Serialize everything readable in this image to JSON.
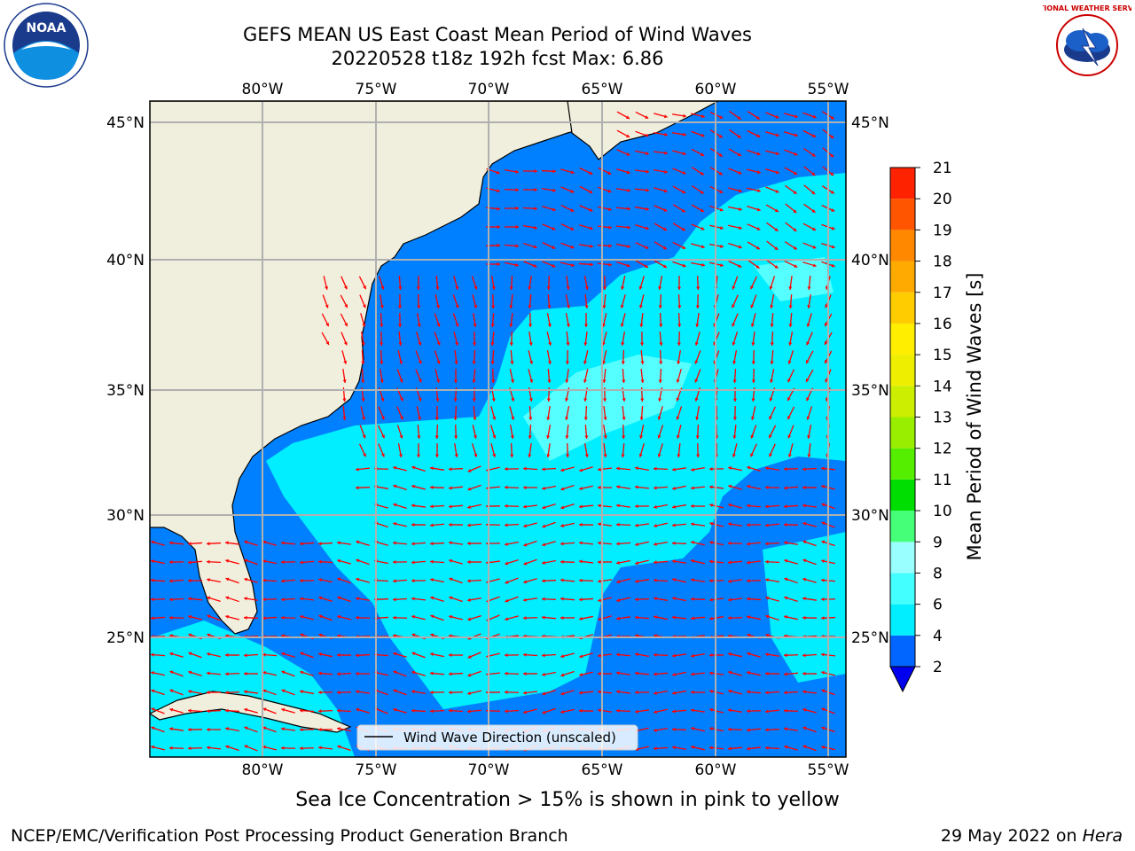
{
  "title": {
    "line1": "GEFS MEAN US East Coast Mean Period of Wind Waves",
    "line2": "20220528 t18z 192h fcst   Max: 6.86"
  },
  "logos": {
    "left": {
      "name": "noaa-logo",
      "text": "NOAA"
    },
    "right": {
      "name": "nws-logo",
      "text": "NATIONAL WEATHER SERVICE"
    }
  },
  "axes": {
    "lon_labels": [
      "80°W",
      "75°W",
      "70°W",
      "65°W",
      "60°W",
      "55°W"
    ],
    "lat_labels": [
      "45°N",
      "40°N",
      "35°N",
      "30°N",
      "25°N"
    ]
  },
  "colorbar": {
    "label": "Mean Period of Wind Waves [s]",
    "ticks": [
      "2",
      "4",
      "6",
      "8",
      "9",
      "10",
      "11",
      "12",
      "13",
      "14",
      "15",
      "16",
      "17",
      "18",
      "19",
      "20",
      "21"
    ],
    "colors": [
      "#0066ff",
      "#00eeff",
      "#44ffff",
      "#99ffff",
      "#44ff77",
      "#00dd00",
      "#55ee00",
      "#99ee00",
      "#ccee00",
      "#eeee00",
      "#ffee00",
      "#ffcc00",
      "#ffaa00",
      "#ff8800",
      "#ff5500",
      "#ff2200",
      "#0000ee"
    ]
  },
  "legend": {
    "label": "Wind Wave Direction (unscaled)"
  },
  "colors": {
    "land": "#f0eedc",
    "low": "#0080ff",
    "mid": "#00eeff",
    "high": "#55ffff",
    "arrow": "#ff0000",
    "grid": "#b0b0b0"
  },
  "note": "Sea Ice Concentration > 15% is shown in pink to yellow",
  "footer": {
    "left": "NCEP/EMC/Verification Post Processing Product Generation Branch",
    "date": "29 May 2022 on ",
    "machine": "Hera"
  }
}
